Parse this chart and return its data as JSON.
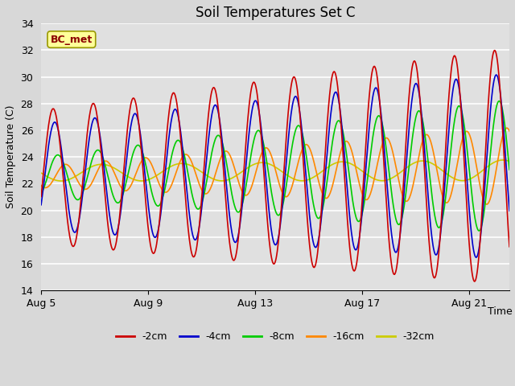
{
  "title": "Soil Temperatures Set C",
  "xlabel": "Time",
  "ylabel": "Soil Temperature (C)",
  "ylim": [
    14,
    34
  ],
  "yticks": [
    14,
    16,
    18,
    20,
    22,
    24,
    26,
    28,
    30,
    32,
    34
  ],
  "xlim_days": [
    0,
    17.5
  ],
  "xtick_positions": [
    0,
    4,
    8,
    12,
    16
  ],
  "xtick_labels": [
    "Aug 5",
    "Aug 9",
    "Aug 13",
    "Aug 17",
    "Aug 21"
  ],
  "series_colors": [
    "#cc0000",
    "#0000cc",
    "#00cc00",
    "#ff8800",
    "#cccc00"
  ],
  "series_labels": [
    "-2cm",
    "-4cm",
    "-8cm",
    "-16cm",
    "-32cm"
  ],
  "annotation_text": "BC_met",
  "bg_color": "#e0e0e0",
  "plot_bg_color": "#e8e8e8",
  "grid_color": "#ffffff",
  "title_fontsize": 12,
  "label_fontsize": 9,
  "tick_fontsize": 9,
  "legend_fontsize": 9
}
